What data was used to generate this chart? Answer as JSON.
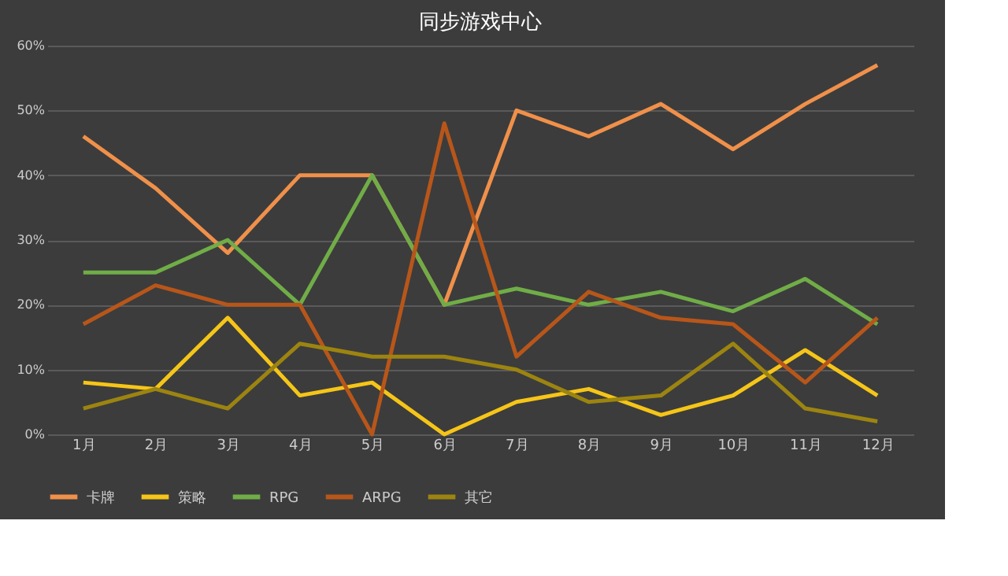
{
  "chart_data": {
    "type": "line",
    "title": "同步游戏中心",
    "categories": [
      "1月",
      "2月",
      "3月",
      "4月",
      "5月",
      "6月",
      "7月",
      "8月",
      "9月",
      "10月",
      "11月",
      "12月"
    ],
    "series": [
      {
        "name": "卡牌",
        "color": "#f0904a",
        "values": [
          46,
          38,
          28,
          40,
          40,
          20,
          50,
          46,
          51,
          44,
          51,
          57
        ]
      },
      {
        "name": "策略",
        "color": "#f5c518",
        "values": [
          8,
          7,
          18,
          6,
          8,
          0,
          5,
          7,
          3,
          6,
          13,
          6
        ]
      },
      {
        "name": "RPG",
        "color": "#70ad47",
        "values": [
          25,
          25,
          30,
          20,
          40,
          20,
          22.5,
          20,
          22,
          19,
          24,
          17
        ]
      },
      {
        "name": "ARPG",
        "color": "#b8561a",
        "values": [
          17,
          23,
          20,
          20,
          0,
          48,
          12,
          22,
          18,
          17,
          8,
          18
        ]
      },
      {
        "name": "其它",
        "color": "#9c8410",
        "values": [
          4,
          7,
          4,
          14,
          12,
          12,
          10,
          5,
          6,
          14,
          4,
          2
        ]
      }
    ],
    "ylim": [
      0,
      60
    ],
    "yticks": [
      {
        "value": 0,
        "label": "0%"
      },
      {
        "value": 10,
        "label": "10%"
      },
      {
        "value": 20,
        "label": "20%"
      },
      {
        "value": 30,
        "label": "30%"
      },
      {
        "value": 40,
        "label": "40%"
      },
      {
        "value": 50,
        "label": "50%"
      },
      {
        "value": 60,
        "label": "60%"
      }
    ],
    "grid": "y",
    "legend": "bottom",
    "marker": "none",
    "line_style": "solid"
  }
}
